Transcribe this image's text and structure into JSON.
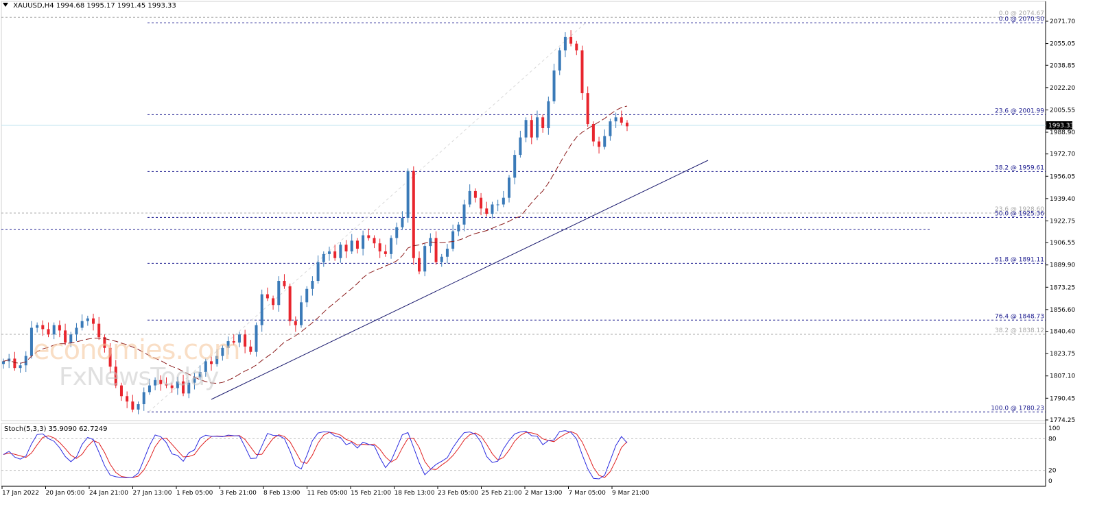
{
  "header": {
    "symbol": "XAUUSD,H4",
    "ohlc": "1994.68 1995.17 1991.45 1993.33"
  },
  "indicator": {
    "label": "Stoch(5,3,3) 35.9090 62.7249",
    "levels": [
      "100",
      "80",
      "20",
      "0"
    ]
  },
  "watermark": {
    "line1": "economies.com",
    "line2": "FxNewsToday"
  },
  "colors": {
    "bull": "#3a7ab8",
    "bear": "#e8252d",
    "ma": "#8b1a1a",
    "trendline": "#1a1a6e",
    "fib_blue": "#1a1a8e",
    "fib_gray": "#a8a8a8",
    "price_line": "#bfe3ef",
    "stoch_main": "#2a2ae0",
    "stoch_signal": "#e02020"
  },
  "chart_data": {
    "type": "candlestick",
    "symbol": "XAUUSD",
    "timeframe": "H4",
    "current_price": "1993.33",
    "y_ticks": [
      "2071.70",
      "2055.05",
      "2038.85",
      "2022.20",
      "2005.55",
      "1988.90",
      "1972.70",
      "1956.05",
      "1939.40",
      "1922.75",
      "1906.55",
      "1889.90",
      "1873.25",
      "1856.60",
      "1840.40",
      "1823.75",
      "1807.10",
      "1790.45",
      "1774.25"
    ],
    "x_ticks": [
      "17 Jan 2022",
      "20 Jan 05:00",
      "24 Jan 21:00",
      "27 Jan 13:00",
      "1 Feb 05:00",
      "3 Feb 21:00",
      "8 Feb 13:00",
      "11 Feb 05:00",
      "15 Feb 21:00",
      "18 Feb 13:00",
      "23 Feb 05:00",
      "25 Feb 21:00",
      "2 Mar 13:00",
      "7 Mar 05:00",
      "9 Mar 21:00"
    ],
    "ylim": [
      1774.25,
      2076
    ],
    "fib_levels_blue": [
      {
        "label": "0.0 @ 2070.50",
        "value": 2070.5
      },
      {
        "label": "23.6 @ 2001.99",
        "value": 2001.99
      },
      {
        "label": "38.2 @ 1959.61",
        "value": 1959.61
      },
      {
        "label": "50.0 @ 1925.36",
        "value": 1925.36
      },
      {
        "label": "61.8 @ 1891.11",
        "value": 1891.11
      },
      {
        "label": "76.4 @ 1848.73",
        "value": 1848.73
      },
      {
        "label": "100.0 @ 1780.23",
        "value": 1780.23
      }
    ],
    "fib_levels_gray": [
      {
        "label": "0.0 @ 2074.67",
        "value": 2074.67
      },
      {
        "label": "23.6 @ 1928.60",
        "value": 1928.6
      },
      {
        "label": "38.2 @ 1838.12",
        "value": 1838.12
      }
    ],
    "horizontal_line": 1916.5,
    "closes": [
      1818,
      1820,
      1813,
      1815,
      1822,
      1843,
      1845,
      1842,
      1838,
      1845,
      1841,
      1832,
      1838,
      1843,
      1848,
      1850,
      1846,
      1836,
      1828,
      1814,
      1800,
      1792,
      1788,
      1782,
      1786,
      1795,
      1800,
      1804,
      1801,
      1800,
      1798,
      1803,
      1794,
      1802,
      1806,
      1810,
      1818,
      1816,
      1822,
      1828,
      1833,
      1832,
      1838,
      1829,
      1825,
      1845,
      1868,
      1865,
      1860,
      1878,
      1874,
      1848,
      1845,
      1862,
      1872,
      1878,
      1892,
      1898,
      1900,
      1895,
      1905,
      1900,
      1908,
      1902,
      1912,
      1910,
      1906,
      1900,
      1898,
      1910,
      1918,
      1925,
      1960,
      1895,
      1885,
      1904,
      1910,
      1892,
      1896,
      1902,
      1915,
      1920,
      1935,
      1945,
      1940,
      1932,
      1928,
      1935,
      1935,
      1940,
      1955,
      1972,
      1985,
      1998,
      1985,
      2000,
      1992,
      2012,
      2035,
      2050,
      2060,
      2055,
      2050,
      2018,
      1995,
      1982,
      1978,
      1986,
      1997,
      2000,
      1996,
      1993.33
    ]
  }
}
